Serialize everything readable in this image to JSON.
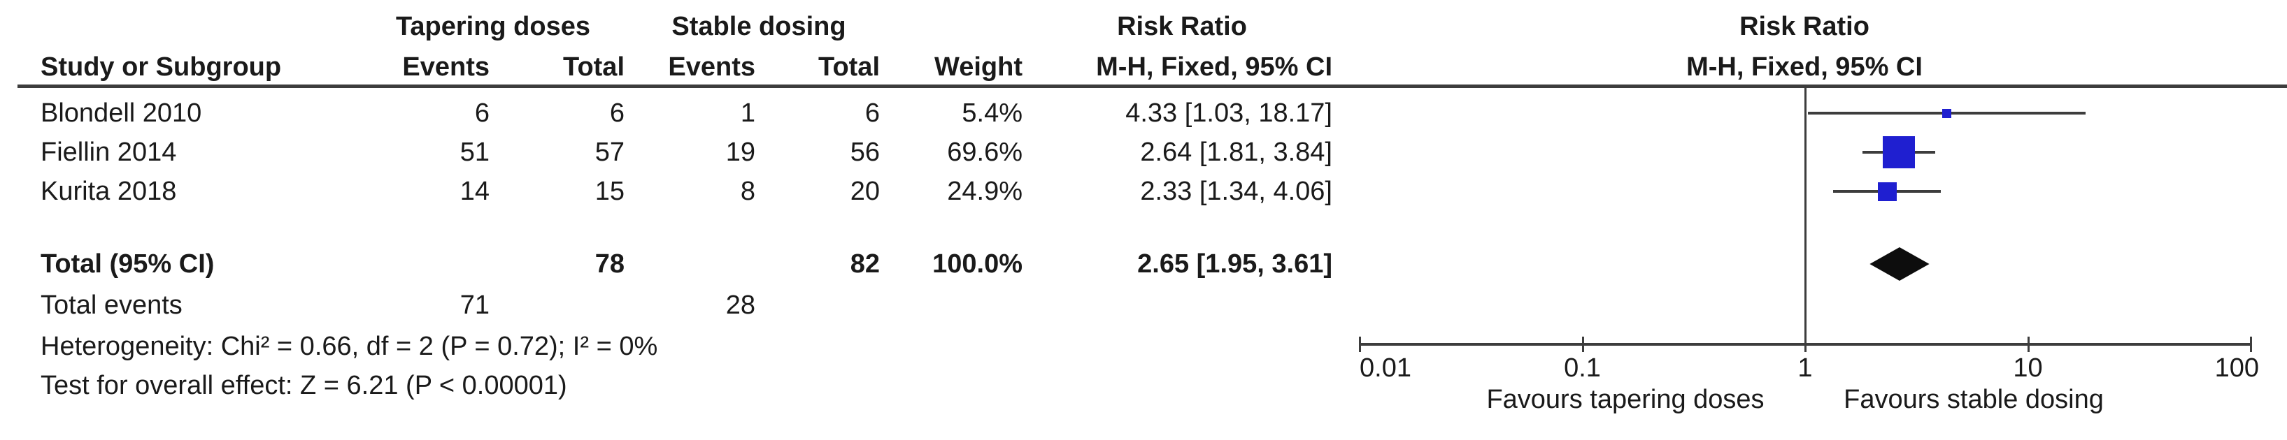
{
  "figure": {
    "group_left": "Tapering doses",
    "group_right": "Stable dosing",
    "risk_ratio_header": "Risk Ratio",
    "mh_header": "M-H, Fixed, 95% CI",
    "columns": {
      "study": "Study or Subgroup",
      "events": "Events",
      "total": "Total",
      "weight": "Weight"
    },
    "total_label": "Total (95% CI)",
    "total_events_label": "Total events",
    "heterogeneity": "Heterogeneity: Chi² = 0.66, df = 2 (P = 0.72); I² = 0%",
    "overall_effect": "Test for overall effect: Z = 6.21 (P < 0.00001)",
    "colors": {
      "square_blue": "#1f1fd0",
      "diamond_black": "#0d0d0d",
      "line_gray": "#3d3d3d",
      "text": "#1a1a1a"
    }
  },
  "chart_data": {
    "type": "forest",
    "effect_measure": "Risk Ratio, M-H, Fixed, 95% CI",
    "x_scale": "log10",
    "x_ticks": [
      0.01,
      0.1,
      1,
      10,
      100
    ],
    "xlim": [
      0.01,
      100
    ],
    "null_value": 1,
    "favours_left": "Favours tapering doses",
    "favours_right": "Favours stable dosing",
    "studies": [
      {
        "study": "Blondell 2010",
        "tapering_events": 6,
        "tapering_total": 6,
        "stable_events": 1,
        "stable_total": 6,
        "weight_label": "5.4%",
        "weight_pct": 5.4,
        "rr": 4.33,
        "ci_low": 1.03,
        "ci_high": 18.17,
        "rr_label": "4.33 [1.03, 18.17]"
      },
      {
        "study": "Fiellin 2014",
        "tapering_events": 51,
        "tapering_total": 57,
        "stable_events": 19,
        "stable_total": 56,
        "weight_label": "69.6%",
        "weight_pct": 69.6,
        "rr": 2.64,
        "ci_low": 1.81,
        "ci_high": 3.84,
        "rr_label": "2.64 [1.81, 3.84]"
      },
      {
        "study": "Kurita 2018",
        "tapering_events": 14,
        "tapering_total": 15,
        "stable_events": 8,
        "stable_total": 20,
        "weight_label": "24.9%",
        "weight_pct": 24.9,
        "rr": 2.33,
        "ci_low": 1.34,
        "ci_high": 4.06,
        "rr_label": "2.33 [1.34, 4.06]"
      }
    ],
    "total": {
      "tapering_total": 78,
      "stable_total": 82,
      "tapering_events": 71,
      "stable_events": 28,
      "weight_label": "100.0%",
      "rr": 2.65,
      "ci_low": 1.95,
      "ci_high": 3.61,
      "rr_label": "2.65 [1.95, 3.61]"
    }
  }
}
